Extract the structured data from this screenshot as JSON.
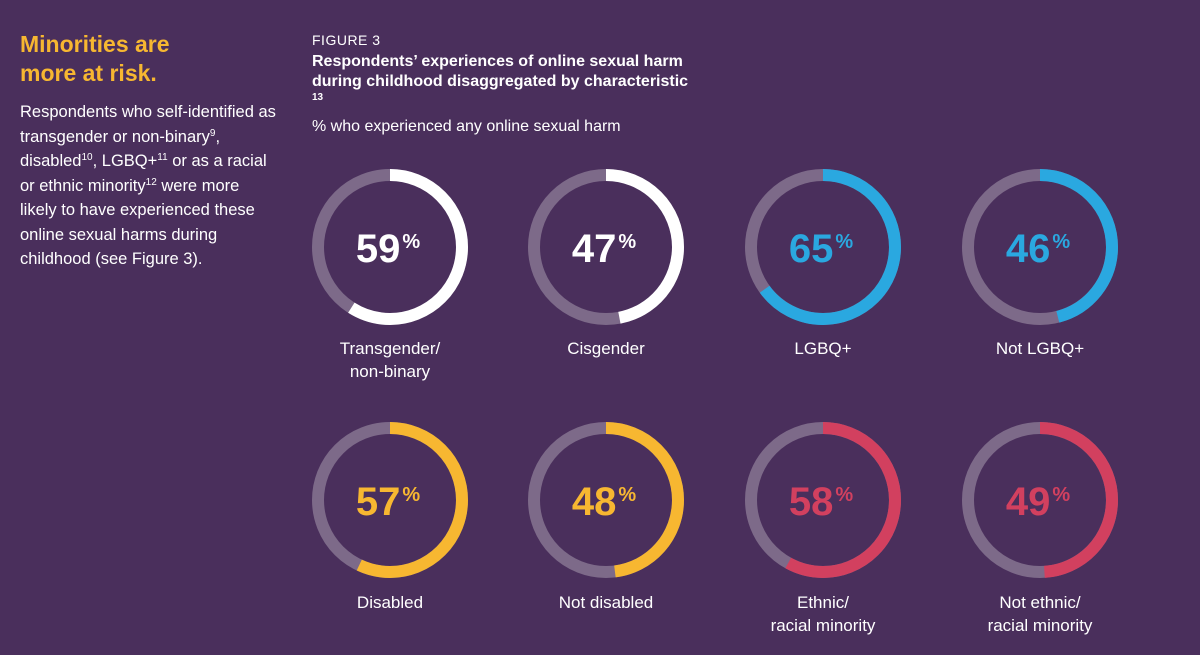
{
  "sidebar": {
    "heading_line1": "Minorities are",
    "heading_line2": "more at risk.",
    "body_parts": [
      "Respondents who self-identified as transgender or non-binary",
      "9",
      ", disabled",
      "10",
      ", LGBQ+",
      "11",
      " or as a racial or ethnic minority",
      "12",
      " were more likely to have experienced these online sexual harms during childhood (see Figure 3)."
    ]
  },
  "figure": {
    "label": "FIGURE 3",
    "title_line1": "Respondents’ experiences of online sexual harm",
    "title_line2": "during childhood disaggregated by characteristic",
    "title_note": "13",
    "subtitle": "% who experienced any online sexual harm"
  },
  "colors": {
    "background": "#4a2f5c",
    "track": "#7d6a89",
    "white": "#ffffff",
    "blue": "#2aa8e0",
    "yellow": "#f7b731",
    "red": "#d2405f",
    "heading": "#f7b731"
  },
  "chart_data": {
    "type": "pie",
    "subtype": "donut",
    "title": "Respondents’ experiences of online sexual harm during childhood disaggregated by characteristic",
    "ylabel": "% who experienced any online sexual harm",
    "value_suffix": "%",
    "categories": [
      "Transgender/ non-binary",
      "Cisgender",
      "LGBQ+",
      "Not LGBQ+",
      "Disabled",
      "Not disabled",
      "Ethnic/ racial minority",
      "Not ethnic/ racial minority"
    ],
    "values": [
      59,
      47,
      65,
      46,
      57,
      48,
      58,
      49
    ],
    "colors": [
      "#ffffff",
      "#ffffff",
      "#2aa8e0",
      "#2aa8e0",
      "#f7b731",
      "#f7b731",
      "#d2405f",
      "#d2405f"
    ],
    "label_lines": [
      [
        "Transgender/",
        "non-binary"
      ],
      [
        "Cisgender"
      ],
      [
        "LGBQ+"
      ],
      [
        "Not LGBQ+"
      ],
      [
        "Disabled"
      ],
      [
        "Not disabled"
      ],
      [
        "Ethnic/",
        "racial minority"
      ],
      [
        "Not ethnic/",
        "racial minority"
      ]
    ]
  }
}
